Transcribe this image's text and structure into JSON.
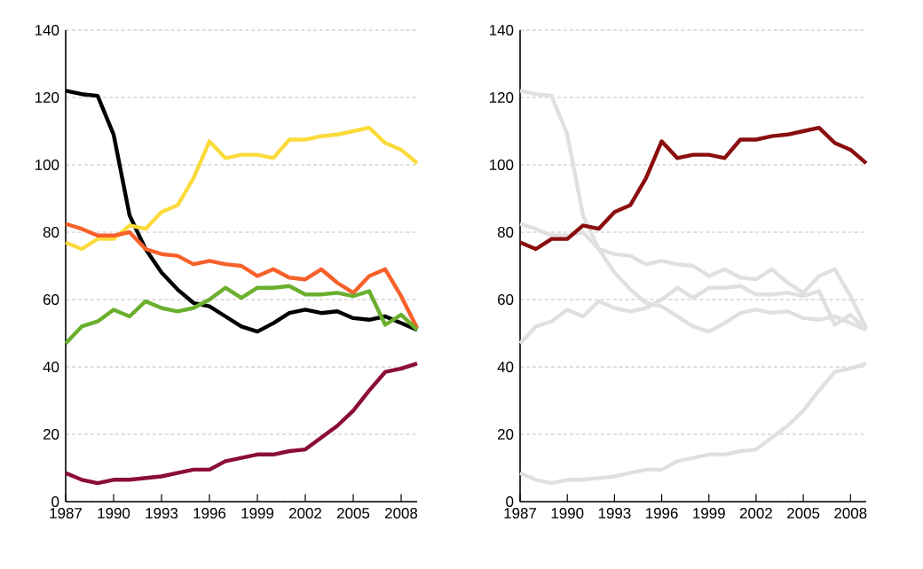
{
  "chart_data": [
    {
      "type": "line",
      "x": [
        1987,
        1988,
        1989,
        1990,
        1991,
        1992,
        1993,
        1994,
        1995,
        1996,
        1997,
        1998,
        1999,
        2000,
        2001,
        2002,
        2003,
        2004,
        2005,
        2006,
        2007,
        2008,
        2009
      ],
      "xlim": [
        1987,
        2009
      ],
      "xticks": [
        1987,
        1990,
        1993,
        1996,
        1999,
        2002,
        2005,
        2008
      ],
      "ylim": [
        0,
        140
      ],
      "yticks": [
        0,
        20,
        40,
        60,
        80,
        100,
        120,
        140
      ],
      "grid": "y",
      "marker": "none",
      "line_style": "solid",
      "series": [
        {
          "color": "#000000",
          "values": [
            122,
            121,
            120.5,
            109,
            85,
            75,
            68,
            63,
            59,
            58,
            55,
            52,
            50.5,
            53,
            56,
            57,
            56,
            56.5,
            54.5,
            54,
            55,
            53,
            51
          ]
        },
        {
          "color": "#fbdb3c",
          "values": [
            77,
            75,
            78,
            78,
            82,
            81,
            86,
            88,
            96,
            107,
            102,
            103,
            103,
            102,
            107.5,
            107.5,
            108.5,
            109,
            110,
            111,
            106.5,
            104.5,
            100.5
          ]
        },
        {
          "color": "#f6612a",
          "values": [
            82.5,
            81,
            79,
            79,
            80,
            75,
            73.5,
            73,
            70.5,
            71.5,
            70.5,
            70,
            67,
            69,
            66.5,
            66,
            69,
            65,
            62,
            67,
            69,
            61,
            51.5
          ]
        },
        {
          "color": "#6ab02e",
          "values": [
            47,
            52,
            53.5,
            57,
            55,
            59.5,
            57.5,
            56.5,
            57.5,
            60,
            63.5,
            60.5,
            63.5,
            63.5,
            64,
            61.5,
            61.5,
            62,
            61,
            62.5,
            52.5,
            55.5,
            51
          ]
        },
        {
          "color": "#8c0c3c",
          "values": [
            8.5,
            6.5,
            5.5,
            6.5,
            6.5,
            7,
            7.5,
            8.5,
            9.5,
            9.5,
            12,
            13,
            14,
            14,
            15,
            15.5,
            19,
            22.5,
            27,
            33,
            38.5,
            39.5,
            41
          ]
        }
      ]
    },
    {
      "type": "line",
      "x": [
        1987,
        1988,
        1989,
        1990,
        1991,
        1992,
        1993,
        1994,
        1995,
        1996,
        1997,
        1998,
        1999,
        2000,
        2001,
        2002,
        2003,
        2004,
        2005,
        2006,
        2007,
        2008,
        2009
      ],
      "xlim": [
        1987,
        2009
      ],
      "xticks": [
        1987,
        1990,
        1993,
        1996,
        1999,
        2002,
        2005,
        2008
      ],
      "ylim": [
        0,
        140
      ],
      "yticks": [
        0,
        20,
        40,
        60,
        80,
        100,
        120,
        140
      ],
      "grid": "y",
      "marker": "none",
      "line_style": "solid",
      "series": [
        {
          "color": "#e0e0e0",
          "values": [
            122,
            121,
            120.5,
            109,
            85,
            75,
            68,
            63,
            59,
            58,
            55,
            52,
            50.5,
            53,
            56,
            57,
            56,
            56.5,
            54.5,
            54,
            55,
            53,
            51
          ]
        },
        {
          "color": "#e0e0e0",
          "values": [
            82.5,
            81,
            79,
            79,
            80,
            75,
            73.5,
            73,
            70.5,
            71.5,
            70.5,
            70,
            67,
            69,
            66.5,
            66,
            69,
            65,
            62,
            67,
            69,
            61,
            51.5
          ]
        },
        {
          "color": "#e0e0e0",
          "values": [
            47,
            52,
            53.5,
            57,
            55,
            59.5,
            57.5,
            56.5,
            57.5,
            60,
            63.5,
            60.5,
            63.5,
            63.5,
            64,
            61.5,
            61.5,
            62,
            61,
            62.5,
            52.5,
            55.5,
            51
          ]
        },
        {
          "color": "#e0e0e0",
          "values": [
            8.5,
            6.5,
            5.5,
            6.5,
            6.5,
            7,
            7.5,
            8.5,
            9.5,
            9.5,
            12,
            13,
            14,
            14,
            15,
            15.5,
            19,
            22.5,
            27,
            33,
            38.5,
            39.5,
            41
          ]
        },
        {
          "color": "#8b0e0e",
          "values": [
            77,
            75,
            78,
            78,
            82,
            81,
            86,
            88,
            96,
            107,
            102,
            103,
            103,
            102,
            107.5,
            107.5,
            108.5,
            109,
            110,
            111,
            106.5,
            104.5,
            100.5
          ]
        }
      ]
    }
  ]
}
